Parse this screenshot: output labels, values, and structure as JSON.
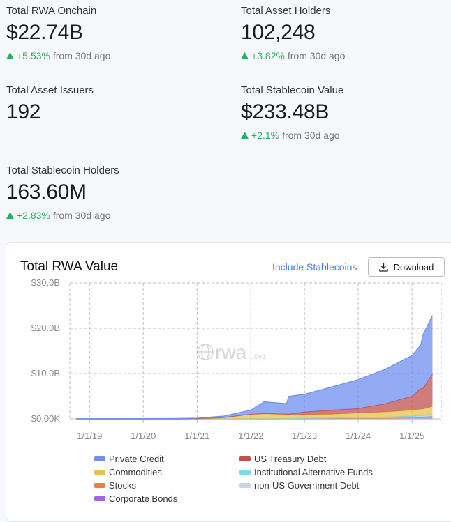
{
  "stats": [
    {
      "label": "Total RWA Onchain",
      "value": "$22.74B",
      "change": "+5.53%",
      "note": "from 30d ago"
    },
    {
      "label": "Total Asset Holders",
      "value": "102,248",
      "change": "+3.82%",
      "note": "from 30d ago"
    },
    {
      "label": "Total Asset Issuers",
      "value": "192"
    },
    {
      "label": "Total Stablecoin Value",
      "value": "$233.48B",
      "change": "+2.1%",
      "note": "from 30d ago"
    },
    {
      "label": "Total Stablecoin Holders",
      "value": "163.60M",
      "change": "+2.83%",
      "note": "from 30d ago"
    }
  ],
  "controls": {
    "toggle": "Include Stablecoins",
    "download": "Download"
  },
  "chart_data": {
    "type": "stacked-area",
    "title": "Total RWA Value",
    "annotations": [
      "rwa",
      ".xyz"
    ],
    "x": [
      "10/1/18",
      "1/1/19",
      "7/1/19",
      "1/1/20",
      "7/1/20",
      "1/1/21",
      "7/1/21",
      "1/1/22",
      "4/1/22",
      "9/1/22",
      "9/15/22",
      "1/1/23",
      "7/1/23",
      "1/1/24",
      "7/1/24",
      "1/1/25",
      "3/1/25",
      "3/15/25",
      "5/20/25"
    ],
    "xlim": [
      "8/20/18",
      "6/1/25"
    ],
    "xticks": [
      "1/1/19",
      "1/1/20",
      "1/1/21",
      "1/1/22",
      "1/1/23",
      "1/1/24",
      "1/1/25"
    ],
    "ylim": [
      0,
      30
    ],
    "yticks": [
      {
        "value": 0,
        "label": "$0.00K"
      },
      {
        "value": 10,
        "label": "$10.0B"
      },
      {
        "value": 20,
        "label": "$20.0B"
      },
      {
        "value": 30,
        "label": "$30.0B"
      }
    ],
    "grid": true,
    "series": [
      {
        "name": "Corporate Bonds",
        "color": "#a066e6",
        "values": [
          0,
          0,
          0,
          0,
          0,
          0,
          0,
          0,
          0,
          0,
          0,
          0,
          0,
          0.01,
          0.02,
          0.05,
          0.06,
          0.06,
          0.08
        ]
      },
      {
        "name": "non-US Government Debt",
        "color": "#c6d4e6",
        "values": [
          0,
          0,
          0,
          0,
          0,
          0,
          0,
          0,
          0,
          0.01,
          0.01,
          0.02,
          0.03,
          0.04,
          0.05,
          0.1,
          0.1,
          0.1,
          0.1
        ]
      },
      {
        "name": "Stocks",
        "color": "#f07a4a",
        "values": [
          0,
          0,
          0,
          0,
          0,
          0,
          0,
          0,
          0,
          0,
          0,
          0.01,
          0.02,
          0.03,
          0.05,
          0.1,
          0.2,
          0.2,
          0.35
        ]
      },
      {
        "name": "Institutional Alternative Funds",
        "color": "#7fd8ec",
        "values": [
          0,
          0,
          0,
          0,
          0,
          0,
          0.01,
          0.02,
          0.05,
          0.05,
          0.05,
          0.1,
          0.15,
          0.2,
          0.3,
          0.35,
          0.4,
          0.4,
          0.5
        ]
      },
      {
        "name": "Commodities",
        "color": "#e8c14a",
        "values": [
          0,
          0,
          0,
          0,
          0.01,
          0.05,
          0.3,
          1.0,
          1.1,
          0.9,
          0.9,
          0.8,
          0.8,
          1.0,
          1.1,
          1.3,
          1.4,
          1.4,
          1.7
        ]
      },
      {
        "name": "US Treasury Debt",
        "color": "#c0504d",
        "values": [
          0,
          0,
          0,
          0,
          0,
          0,
          0,
          0.01,
          0.02,
          0.1,
          0.1,
          0.6,
          0.9,
          1.0,
          1.8,
          3.1,
          4.5,
          4.5,
          7.1
        ]
      },
      {
        "name": "Private Credit",
        "color": "#6f8ef0",
        "values": [
          0.02,
          0.05,
          0.05,
          0.06,
          0.08,
          0.1,
          0.3,
          0.9,
          2.6,
          2.3,
          3.9,
          3.9,
          5.1,
          6.4,
          7.6,
          9.0,
          9.6,
          11.8,
          13.0
        ]
      }
    ],
    "legend_order": [
      6,
      5,
      4,
      3,
      2,
      1,
      0
    ]
  }
}
